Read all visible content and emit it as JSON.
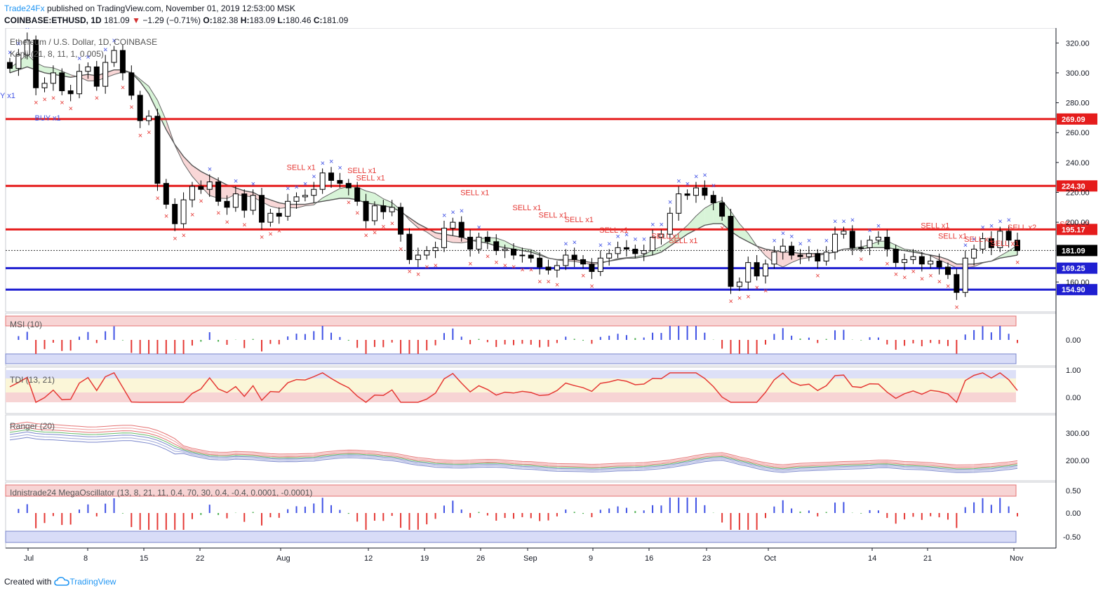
{
  "header": {
    "brand": "Trade24Fx",
    "published": "published on TradingView.com, November 01, 2019 12:53:00 MSK",
    "symbol": "COINBASE:ETHUSD, 1D",
    "last": "181.09",
    "change": "−1.29 (−0.71%)",
    "o_label": "O:",
    "o": "182.38",
    "h_label": "H:",
    "h": "183.09",
    "l_label": "L:",
    "l": "180.46",
    "c_label": "C:",
    "c": "181.09"
  },
  "footer": {
    "created_with": "Created with",
    "tv": "TradingView"
  },
  "colors": {
    "up": "#ffffff",
    "down": "#000000",
    "resistance": "#e51c1c",
    "support": "#1f1fd1",
    "current": "#000000",
    "sell": "#e53935",
    "buy": "#3f51e5"
  },
  "chart_data": {
    "type": "candlestick",
    "title": "Ethereum / U.S. Dollar, 1D, COINBASE",
    "indicator_main": "Kenji (21, 8, 11, 1, 0.005)",
    "ylim": [
      140,
      330
    ],
    "y_ticks": [
      "320.00",
      "300.00",
      "280.00",
      "260.00",
      "240.00",
      "220.00",
      "200.00",
      "160.00"
    ],
    "x_ticks": [
      "Jul",
      "8",
      "15",
      "22",
      "Aug",
      "12",
      "19",
      "26",
      "Sep",
      "9",
      "16",
      "23",
      "Oct",
      "14",
      "21",
      "Nov"
    ],
    "levels": [
      {
        "value": 269.09,
        "label": "269.09",
        "kind": "resistance"
      },
      {
        "value": 224.3,
        "label": "224.30",
        "kind": "resistance"
      },
      {
        "value": 195.17,
        "label": "195.17",
        "kind": "resistance"
      },
      {
        "value": 181.09,
        "label": "181.09",
        "kind": "current"
      },
      {
        "value": 169.25,
        "label": "169.25",
        "kind": "support"
      },
      {
        "value": 154.9,
        "label": "154.90",
        "kind": "support"
      }
    ],
    "close": [
      303,
      312,
      322,
      290,
      293,
      300,
      288,
      286,
      301,
      304,
      291,
      307,
      315,
      300,
      285,
      268,
      271,
      226,
      212,
      199,
      215,
      224,
      222,
      227,
      214,
      210,
      219,
      208,
      218,
      200,
      206,
      204,
      214,
      217,
      218,
      222,
      233,
      228,
      226,
      223,
      214,
      201,
      211,
      207,
      210,
      192,
      175,
      178,
      181,
      183,
      196,
      200,
      190,
      182,
      190,
      187,
      181,
      182,
      178,
      178,
      176,
      170,
      168,
      171,
      178,
      175,
      172,
      167,
      176,
      179,
      183,
      182,
      179,
      181,
      190,
      192,
      206,
      219,
      218,
      223,
      218,
      213,
      204,
      157,
      160,
      173,
      164,
      172,
      180,
      184,
      178,
      177,
      179,
      174,
      180,
      192,
      194,
      183,
      183,
      188,
      190,
      182,
      173,
      175,
      177,
      172,
      174,
      170,
      165,
      153,
      176,
      182,
      189,
      183,
      194,
      188,
      181
    ],
    "volatility_band_upper": [
      300,
      302,
      304,
      302,
      300,
      299,
      298,
      297,
      298,
      299,
      298,
      300,
      302,
      302,
      300,
      294,
      286,
      274,
      262,
      252,
      244,
      238,
      234,
      231,
      228,
      225,
      223,
      221,
      220,
      217,
      215,
      213,
      212,
      212,
      212,
      213,
      214,
      215,
      216,
      216,
      215,
      213,
      212,
      211,
      210,
      207,
      203,
      199,
      196,
      193,
      192,
      191,
      190,
      188,
      187,
      186,
      184,
      183,
      182,
      181,
      180,
      178,
      176,
      175,
      175,
      175,
      174,
      173,
      173,
      174,
      175,
      176,
      176,
      177,
      178,
      180,
      184,
      188,
      192,
      195,
      198,
      199,
      199,
      194,
      190,
      187,
      184,
      182,
      181,
      180,
      180,
      179,
      179,
      179,
      179,
      180,
      182,
      182,
      182,
      183,
      183,
      183,
      182,
      181,
      180,
      179,
      178,
      177,
      175,
      172,
      172,
      172,
      173,
      174,
      176,
      177,
      178
    ],
    "msi": {
      "label": "MSI (10)",
      "ticks": [
        "0.00"
      ]
    },
    "tdi": {
      "label": "TDI (13, 21)",
      "ticks": [
        "1.00",
        "0.00"
      ]
    },
    "ranger": {
      "label": "Ranger (20)",
      "ticks": [
        "300.00",
        "200.00"
      ]
    },
    "mega": {
      "label": "Idnistrade24 MegaOscillator (13, 8, 21, 11, 0.4, 70, 30, 0.4, -0.4, 0.0001, -0.0001)",
      "ticks": [
        "0.50",
        "0.00",
        "-0.50"
      ]
    },
    "signals": [
      {
        "text": "SELL x1",
        "i": 33,
        "y": 235
      },
      {
        "text": "SELL x1",
        "i": 40,
        "y": 233
      },
      {
        "text": "SELL x1",
        "i": 41,
        "y": 228
      },
      {
        "text": "SELL x1",
        "i": 53,
        "y": 218
      },
      {
        "text": "SELL x1",
        "i": 59,
        "y": 208
      },
      {
        "text": "SELL x1",
        "i": 62,
        "y": 203
      },
      {
        "text": "SELL x1",
        "i": 65,
        "y": 200
      },
      {
        "text": "SELL x1",
        "i": 69,
        "y": 193
      },
      {
        "text": "SELL x1",
        "i": 75,
        "y": 189
      },
      {
        "text": "SELL x1",
        "i": 77,
        "y": 186
      },
      {
        "text": "SELL x1",
        "i": 106,
        "y": 196
      },
      {
        "text": "SELL x1",
        "i": 108,
        "y": 189
      },
      {
        "text": "SELL x1",
        "i": 111,
        "y": 187
      },
      {
        "text": "SELL x1",
        "i": 114,
        "y": 184
      },
      {
        "text": "SELL x2",
        "i": 116,
        "y": 195
      },
      {
        "text": "SELL x2",
        "i": 122,
        "y": 197
      },
      {
        "text": "BUY x1",
        "i": 4,
        "y": 268
      },
      {
        "text": "Y x1",
        "i": 0,
        "y": 283
      }
    ]
  }
}
